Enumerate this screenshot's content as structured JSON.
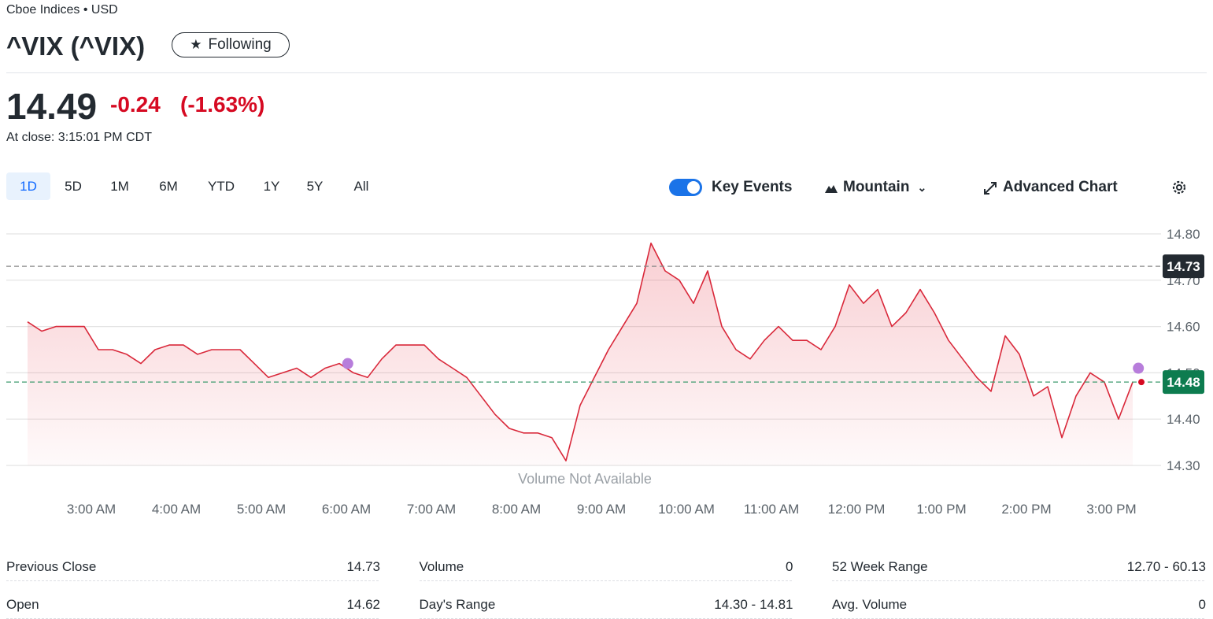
{
  "header": {
    "exchange": "Cboe Indices • USD",
    "title": "^VIX (^VIX)",
    "follow": "Following"
  },
  "quote": {
    "price": "14.49",
    "change": "-0.24",
    "change_pct": "(-1.63%)",
    "time": "At close: 3:15:01 PM CDT"
  },
  "toolbar": {
    "ranges": [
      "1D",
      "5D",
      "1M",
      "6M",
      "YTD",
      "1Y",
      "5Y",
      "All"
    ],
    "key_events": "Key Events",
    "chart_type": "Mountain",
    "advanced": "Advanced Chart"
  },
  "chart_data": {
    "type": "area",
    "annotation": "Volume Not Available",
    "color": "#d9283a",
    "xlim": [
      135,
      920
    ],
    "ylim": [
      14.3,
      14.8
    ],
    "yticks": [
      {
        "value": 14.3,
        "label": "14.30"
      },
      {
        "value": 14.4,
        "label": "14.40"
      },
      {
        "value": 14.5,
        "label": "14.50"
      },
      {
        "value": 14.6,
        "label": "14.60"
      },
      {
        "value": 14.7,
        "label": "14.70"
      },
      {
        "value": 14.8,
        "label": "14.80"
      }
    ],
    "xticks": [
      {
        "value": 180,
        "label": "3:00 AM"
      },
      {
        "value": 240,
        "label": "4:00 AM"
      },
      {
        "value": 300,
        "label": "5:00 AM"
      },
      {
        "value": 360,
        "label": "6:00 AM"
      },
      {
        "value": 420,
        "label": "7:00 AM"
      },
      {
        "value": 480,
        "label": "8:00 AM"
      },
      {
        "value": 540,
        "label": "9:00 AM"
      },
      {
        "value": 600,
        "label": "10:00 AM"
      },
      {
        "value": 660,
        "label": "11:00 AM"
      },
      {
        "value": 720,
        "label": "12:00 PM"
      },
      {
        "value": 780,
        "label": "1:00 PM"
      },
      {
        "value": 840,
        "label": "2:00 PM"
      },
      {
        "value": 900,
        "label": "3:00 PM"
      }
    ],
    "grid": true,
    "x": [
      135,
      145,
      155,
      165,
      175,
      185,
      195,
      205,
      215,
      225,
      235,
      245,
      255,
      265,
      275,
      285,
      295,
      305,
      315,
      325,
      335,
      345,
      355,
      365,
      375,
      385,
      395,
      405,
      415,
      425,
      435,
      445,
      455,
      465,
      475,
      485,
      495,
      505,
      515,
      525,
      535,
      545,
      555,
      565,
      575,
      585,
      595,
      605,
      615,
      625,
      635,
      645,
      655,
      665,
      675,
      685,
      695,
      705,
      715,
      725,
      735,
      745,
      755,
      765,
      775,
      785,
      795,
      805,
      815,
      825,
      835,
      845,
      855,
      865,
      875,
      885,
      895,
      905,
      915
    ],
    "values": [
      14.61,
      14.59,
      14.6,
      14.6,
      14.6,
      14.55,
      14.55,
      14.54,
      14.52,
      14.55,
      14.56,
      14.56,
      14.54,
      14.55,
      14.55,
      14.55,
      14.52,
      14.49,
      14.5,
      14.51,
      14.49,
      14.51,
      14.52,
      14.5,
      14.49,
      14.53,
      14.56,
      14.56,
      14.56,
      14.53,
      14.51,
      14.49,
      14.45,
      14.41,
      14.38,
      14.37,
      14.37,
      14.36,
      14.31,
      14.43,
      14.49,
      14.55,
      14.6,
      14.65,
      14.78,
      14.72,
      14.7,
      14.65,
      14.72,
      14.6,
      14.55,
      14.53,
      14.57,
      14.6,
      14.57,
      14.57,
      14.55,
      14.6,
      14.69,
      14.65,
      14.68,
      14.6,
      14.63,
      14.68,
      14.63,
      14.57,
      14.53,
      14.49,
      14.46,
      14.58,
      14.54,
      14.45,
      14.47,
      14.36,
      14.45,
      14.5,
      14.48,
      14.4,
      14.48
    ],
    "events": {
      "x": [
        361,
        919
      ],
      "values": [
        14.52,
        14.51
      ],
      "color": "#b77ddb"
    },
    "reference_lines": [
      {
        "value": 14.73,
        "color": "#8a8a8a",
        "badge": "#232a31"
      },
      {
        "value": 14.48,
        "color": "#3c9a6e",
        "badge": "#0d7c4f"
      }
    ]
  },
  "stats": [
    [
      [
        "Previous Close",
        "14.73"
      ],
      [
        "Open",
        "14.62"
      ]
    ],
    [
      [
        "Volume",
        "0"
      ],
      [
        "Day's Range",
        "14.30 - 14.81"
      ]
    ],
    [
      [
        "52 Week Range",
        "12.70 - 60.13"
      ],
      [
        "Avg. Volume",
        "0"
      ]
    ]
  ]
}
